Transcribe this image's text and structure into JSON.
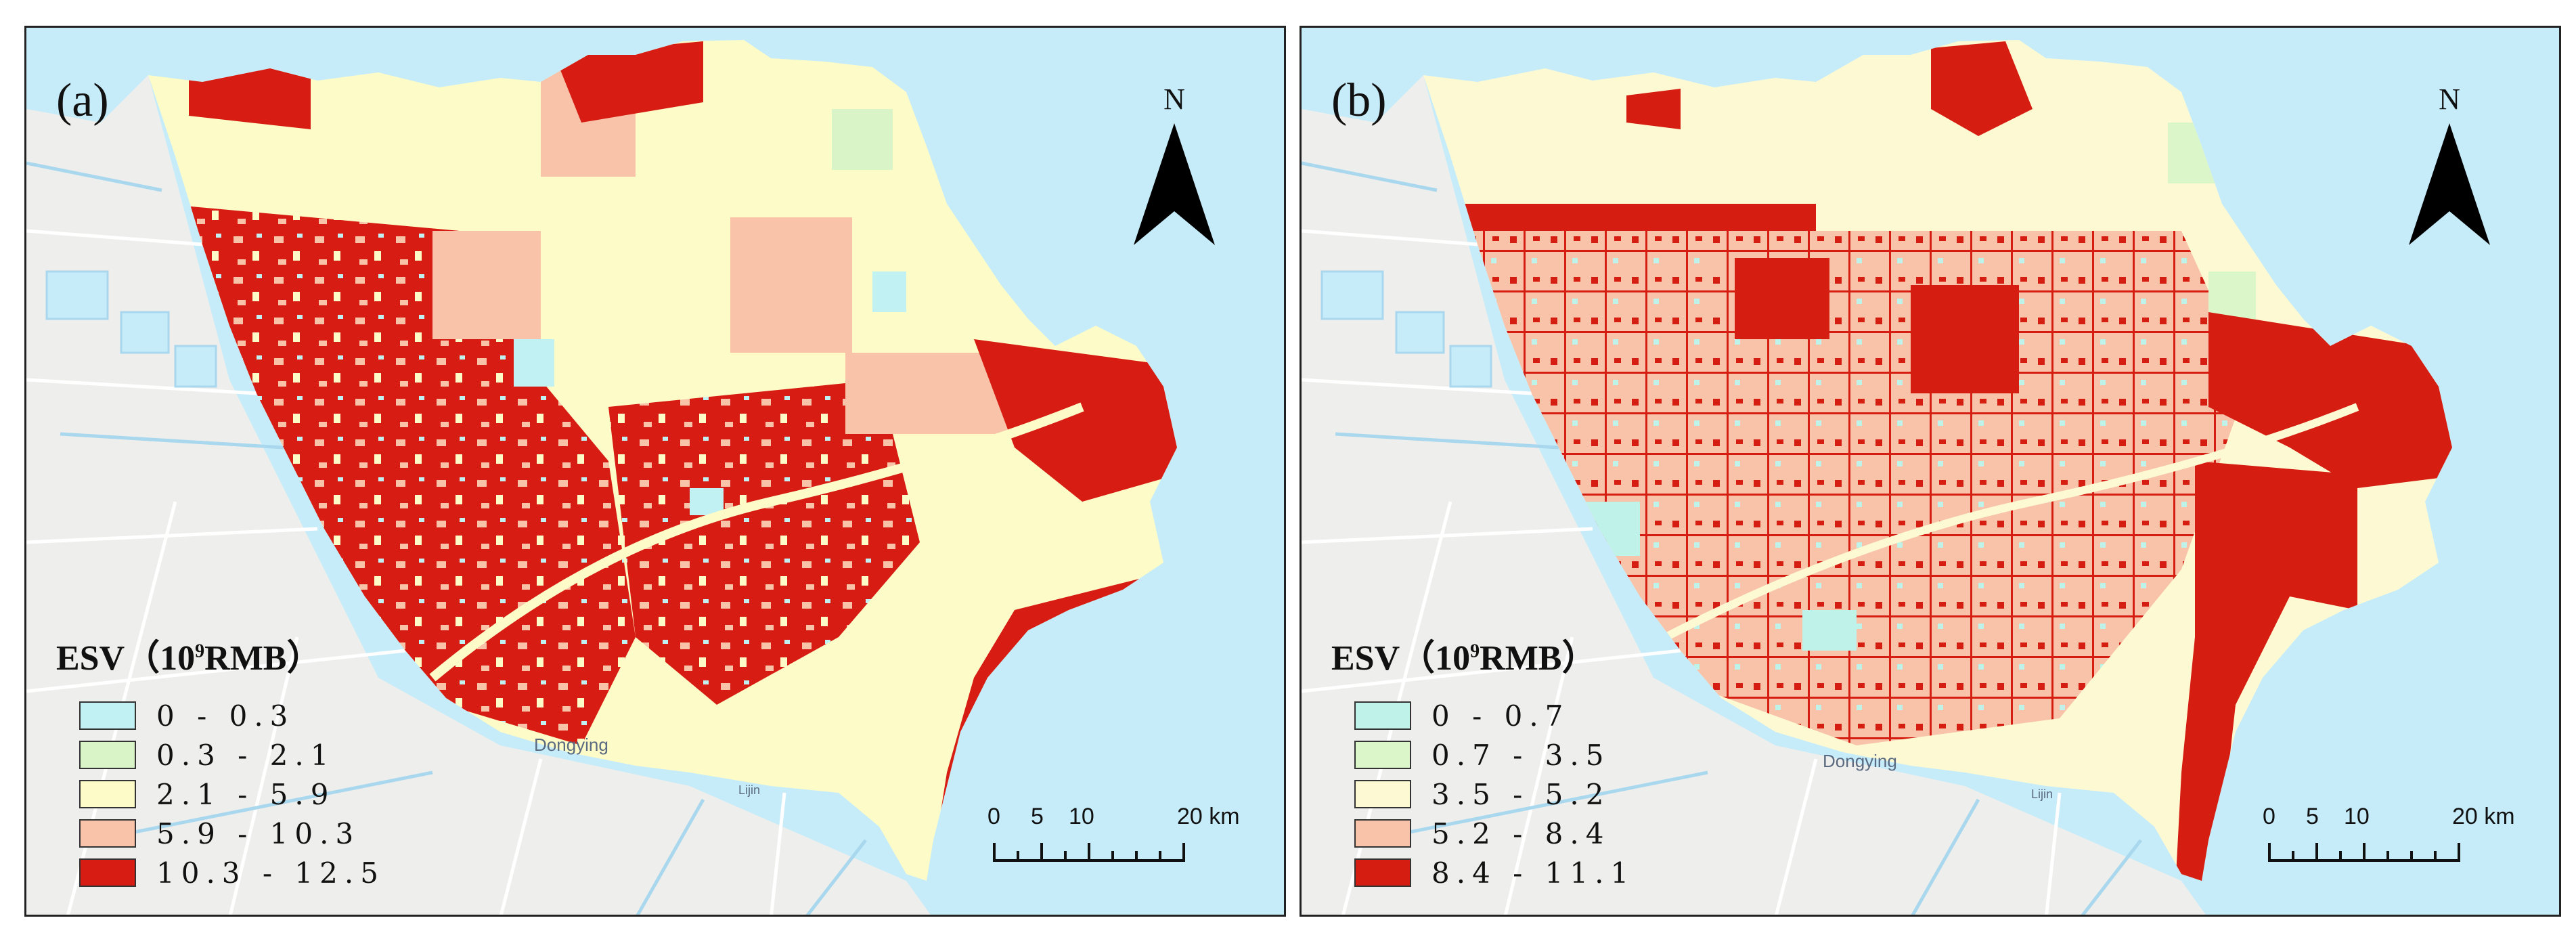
{
  "colors": {
    "water": "#c6ecfa",
    "land": "#eeeeec",
    "road": "#ffffff",
    "canal": "#a9d8ee",
    "border": "#222222"
  },
  "panels": [
    {
      "id": "a",
      "label": "(a)",
      "north_label": "N",
      "place_labels": {
        "city": "Dongying",
        "town": "Lijin"
      },
      "legend": {
        "title_prefix": "ESV（10",
        "title_sup": "9",
        "title_suffix": "RMB）",
        "classes": [
          {
            "label": "0 - 0.3",
            "color": "#c2f1f3"
          },
          {
            "label": "0.3 - 2.1",
            "color": "#d9f4c6"
          },
          {
            "label": "2.1 - 5.9",
            "color": "#fdfbc8"
          },
          {
            "label": "5.9 - 10.3",
            "color": "#f8c3a8"
          },
          {
            "label": "10.3 - 12.5",
            "color": "#d71d13"
          }
        ]
      },
      "scale": {
        "ticks": [
          "0",
          "5",
          "10",
          "20 km"
        ]
      }
    },
    {
      "id": "b",
      "label": "(b)",
      "north_label": "N",
      "place_labels": {
        "city": "Dongying",
        "town": "Lijin"
      },
      "legend": {
        "title_prefix": "ESV（10",
        "title_sup": "9",
        "title_suffix": "RMB）",
        "classes": [
          {
            "label": "0 - 0.7",
            "color": "#bff2e9"
          },
          {
            "label": "0.7 - 3.5",
            "color": "#dbf6c8"
          },
          {
            "label": "3.5 - 5.2",
            "color": "#fdfad3"
          },
          {
            "label": "5.2 - 8.4",
            "color": "#f8c3a8"
          },
          {
            "label": "8.4 - 11.1",
            "color": "#d51d12"
          }
        ]
      },
      "scale": {
        "ticks": [
          "0",
          "5",
          "10",
          "20 km"
        ]
      }
    }
  ]
}
